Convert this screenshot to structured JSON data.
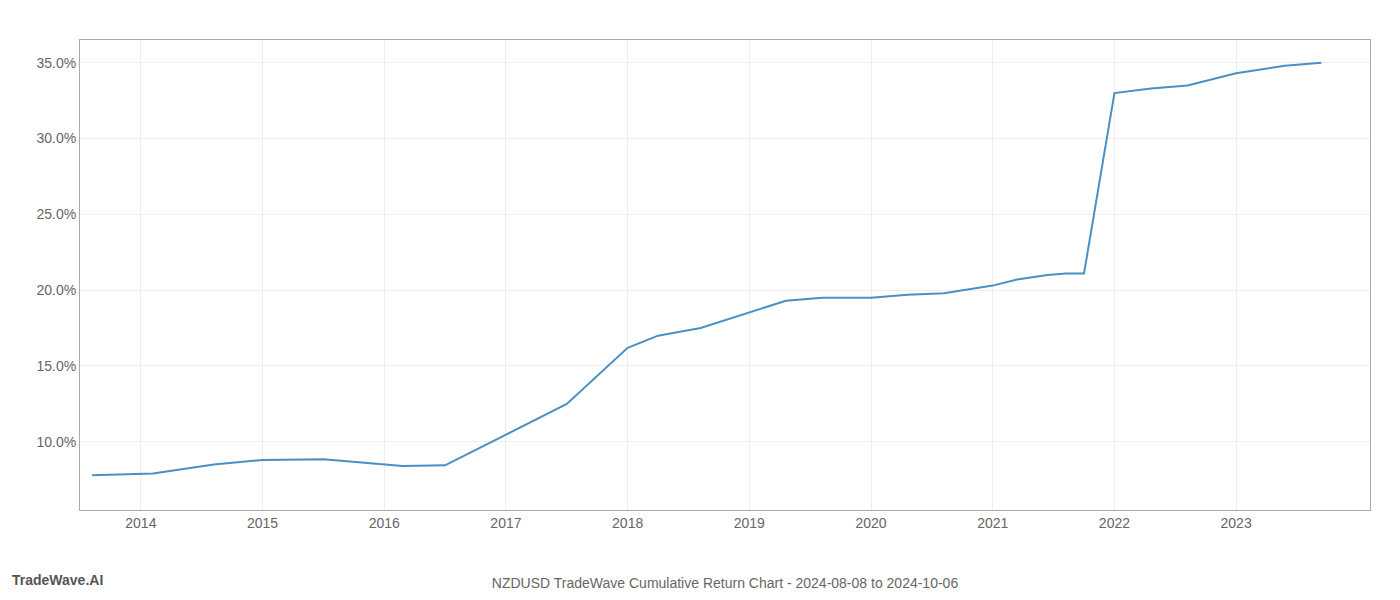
{
  "chart_data": {
    "type": "line",
    "title": "NZDUSD TradeWave Cumulative Return Chart - 2024-08-08 to 2024-10-06",
    "annotations": [
      "TradeWave.AI"
    ],
    "x": [
      2013.6,
      2014.1,
      2014.6,
      2015.0,
      2015.5,
      2016.0,
      2016.15,
      2016.5,
      2017.0,
      2017.5,
      2018.0,
      2018.25,
      2018.6,
      2019.0,
      2019.3,
      2019.6,
      2020.0,
      2020.3,
      2020.6,
      2021.0,
      2021.2,
      2021.45,
      2021.6,
      2021.75,
      2022.0,
      2022.3,
      2022.6,
      2023.0,
      2023.4,
      2023.7
    ],
    "values": [
      7.8,
      7.9,
      8.5,
      8.8,
      8.85,
      8.5,
      8.4,
      8.45,
      10.5,
      12.5,
      16.2,
      17.0,
      17.5,
      18.5,
      19.3,
      19.5,
      19.5,
      19.7,
      19.8,
      20.3,
      20.7,
      21.0,
      21.1,
      21.1,
      33.0,
      33.3,
      33.5,
      34.3,
      34.8,
      35.0
    ],
    "color": "#4a90c4",
    "xlim": [
      2013.5,
      2024.1
    ],
    "xticks": [
      2014,
      2015,
      2016,
      2017,
      2018,
      2019,
      2020,
      2021,
      2022,
      2023
    ],
    "ylim": [
      5.5,
      36.5
    ],
    "yticks": [
      {
        "value": 10.0,
        "label": "10.0%"
      },
      {
        "value": 15.0,
        "label": "15.0%"
      },
      {
        "value": 20.0,
        "label": "20.0%"
      },
      {
        "value": 25.0,
        "label": "25.0%"
      },
      {
        "value": 30.0,
        "label": "30.0%"
      },
      {
        "value": 35.0,
        "label": "35.0%"
      }
    ],
    "grid": true
  }
}
